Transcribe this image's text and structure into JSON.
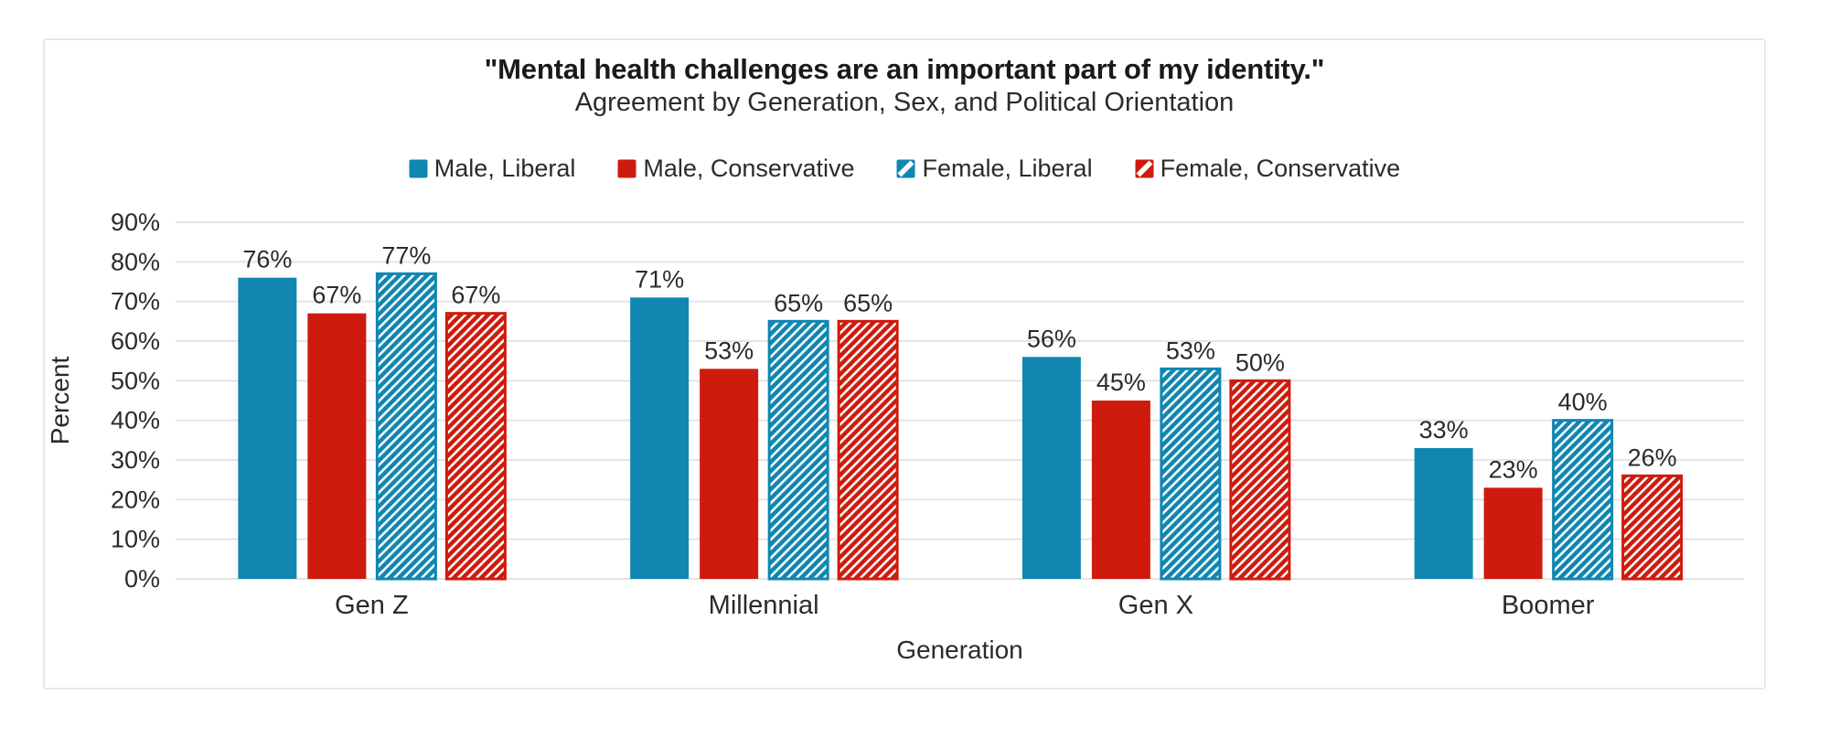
{
  "style": {
    "page_bg": "#ffffff",
    "card_bg": "#ffffff",
    "card_border": "#e8e8e8",
    "grid_color": "#e4e4e4",
    "title_color": "#1a1a1a",
    "text_color": "#2b2b2b",
    "blue": "#1086b0",
    "red": "#ce1b0e"
  },
  "chart_data": {
    "type": "bar",
    "title": "\"Mental health challenges are an important part of my identity.\"",
    "subtitle": "Agreement by Generation, Sex, and Political Orientation",
    "xlabel": "Generation",
    "ylabel": "Percent",
    "ylim": [
      0,
      90
    ],
    "ytick_step": 10,
    "ytick_suffix": "%",
    "value_suffix": "%",
    "grid": true,
    "legend_position": "top-center",
    "categories": [
      "Gen Z",
      "Millennial",
      "Gen X",
      "Boomer"
    ],
    "series": [
      {
        "name": "Male, Liberal",
        "color": "#1086b0",
        "fill": "solid",
        "values": [
          76,
          71,
          56,
          33
        ]
      },
      {
        "name": "Male, Conservative",
        "color": "#ce1b0e",
        "fill": "solid",
        "values": [
          67,
          53,
          45,
          23
        ]
      },
      {
        "name": "Female, Liberal",
        "color": "#1086b0",
        "fill": "hatch",
        "values": [
          77,
          65,
          53,
          40
        ]
      },
      {
        "name": "Female, Conservative",
        "color": "#ce1b0e",
        "fill": "hatch",
        "values": [
          67,
          65,
          50,
          26
        ]
      }
    ]
  }
}
